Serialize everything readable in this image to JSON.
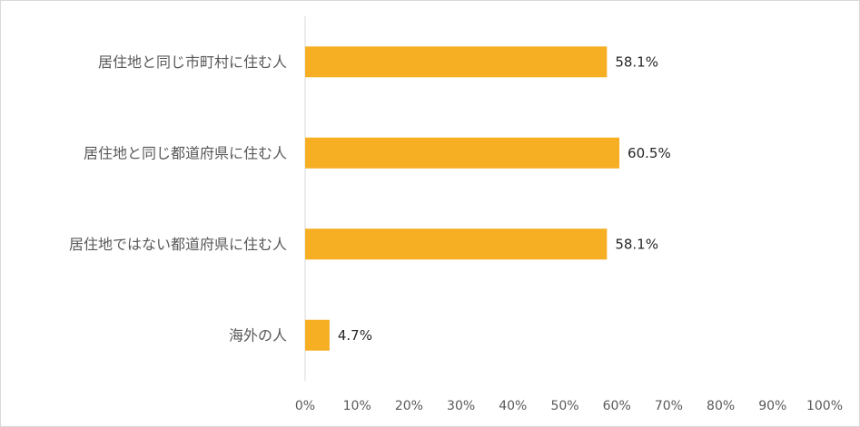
{
  "chart_data": {
    "type": "bar",
    "orientation": "horizontal",
    "categories": [
      "居住地と同じ市町村に住む人",
      "居住地と同じ都道府県に住む人",
      "居住地ではない都道府県に住む人",
      "海外の人"
    ],
    "values": [
      58.1,
      60.5,
      58.1,
      4.7
    ],
    "value_labels": [
      "58.1%",
      "60.5%",
      "58.1%",
      "4.7%"
    ],
    "xlim": [
      0,
      100
    ],
    "x_ticks": [
      "0%",
      "10%",
      "20%",
      "30%",
      "40%",
      "50%",
      "60%",
      "70%",
      "80%",
      "90%",
      "100%"
    ],
    "grid": false,
    "legend": "none",
    "bar_color": "#F6AE23",
    "axis_color": "#d9d9d9"
  }
}
